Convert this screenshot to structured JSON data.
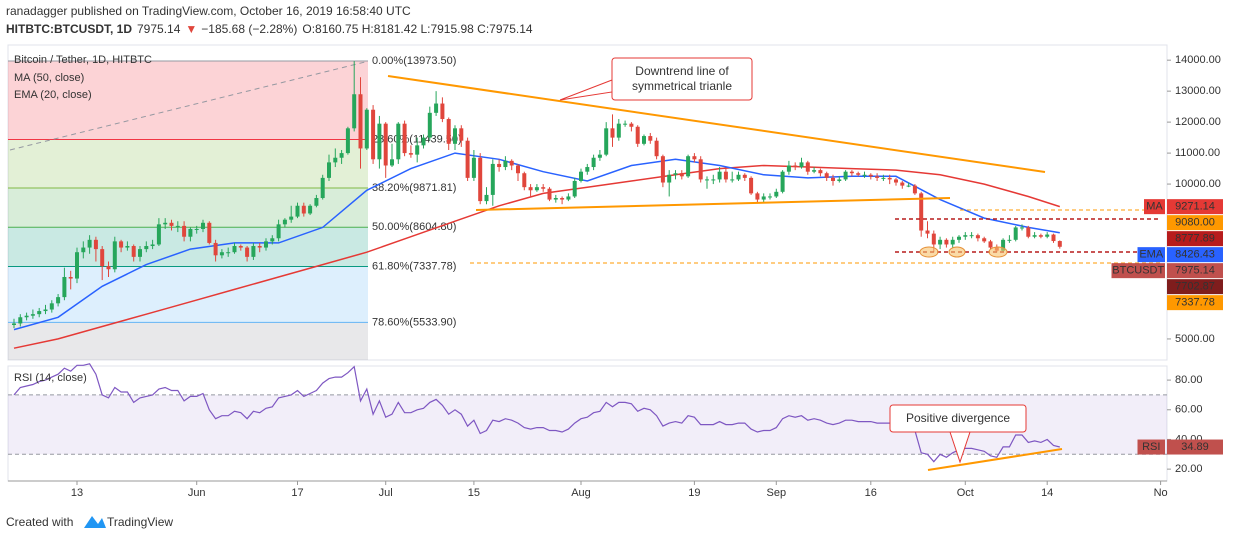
{
  "header": {
    "publisher": "ranadagger published on TradingView.com, October 16, 2019 16:58:40 UTC",
    "symbol": "HITBTC:BTCUSDT, 1D",
    "price": "7975.14",
    "arrow": "▼",
    "change": "−185.68 (−2.28%)",
    "ohlc": "O:8160.75 H:8181.42 L:7915.98 C:7975.14"
  },
  "footer": {
    "created": "Created with",
    "brand": "TradingView"
  },
  "chart_data": {
    "type": "candlestick",
    "title": "Bitcoin / Tether, 1D, HITBTC",
    "ylim": [
      4320,
      14490
    ],
    "yticks": [
      {
        "value": 5000,
        "label": "5000.00"
      },
      {
        "value": 10000,
        "label": "10000.00"
      },
      {
        "value": 11000,
        "label": "11000.00"
      },
      {
        "value": 12000,
        "label": "12000.00"
      },
      {
        "value": 13000,
        "label": "13000.00"
      },
      {
        "value": 14000,
        "label": "14000.00"
      }
    ],
    "xticks": [
      {
        "value": 10,
        "label": "13"
      },
      {
        "value": 29,
        "label": "Jun"
      },
      {
        "value": 45,
        "label": "17"
      },
      {
        "value": 59,
        "label": "Jul"
      },
      {
        "value": 73,
        "label": "15"
      },
      {
        "value": 90,
        "label": "Aug"
      },
      {
        "value": 108,
        "label": "19"
      },
      {
        "value": 121,
        "label": "Sep"
      },
      {
        "value": 136,
        "label": "16"
      },
      {
        "value": 151,
        "label": "Oct"
      },
      {
        "value": 164,
        "label": "14"
      },
      {
        "value": 182,
        "label": "No"
      }
    ],
    "candles": {
      "up_color": "#26a65b",
      "down_color": "#e0463c",
      "open": [
        5450,
        5500,
        5700,
        5750,
        5800,
        5900,
        5950,
        6150,
        6350,
        7000,
        6950,
        7800,
        7950,
        8200,
        7900,
        7350,
        7250,
        8150,
        7950,
        8000,
        7650,
        7900,
        8000,
        8050,
        8700,
        8750,
        8650,
        8650,
        8300,
        8550,
        8550,
        8750,
        8100,
        7700,
        7800,
        7800,
        8000,
        7950,
        7650,
        8000,
        7950,
        8150,
        8250,
        8700,
        8850,
        8950,
        9300,
        9050,
        9300,
        9550,
        10200,
        10700,
        10850,
        11000,
        11800,
        12900,
        11150,
        12400,
        10800,
        11950,
        10600,
        10800,
        11950,
        11000,
        10950,
        11250,
        11500,
        12300,
        12600,
        12100,
        11300,
        11800,
        11400,
        10200,
        10850,
        9450,
        9650,
        10650,
        10550,
        10750,
        10600,
        10350,
        9900,
        9800,
        9900,
        9850,
        9500,
        9550,
        9500,
        9600,
        10100,
        10400,
        10550,
        10850,
        10950,
        11800,
        11500,
        11950,
        11950,
        11850,
        11300,
        11550,
        11400,
        10900,
        10050,
        10300,
        10350,
        10250,
        10900,
        10800,
        10150,
        10150,
        10150,
        10400,
        10150,
        10150,
        10300,
        10200,
        9700,
        9500,
        9600,
        9600,
        9750,
        10400,
        10600,
        10550,
        10700,
        10400,
        10450,
        10350,
        10200,
        10100,
        10150,
        10400,
        10350,
        10300,
        10300,
        10250,
        10200,
        10200,
        10150,
        10050,
        9950,
        9950,
        9700,
        8500,
        8400,
        8050,
        8200,
        8050,
        8200,
        8300,
        8350,
        8350,
        8250,
        8150,
        7950,
        7850,
        8200,
        8200,
        8600,
        8600,
        8300,
        8350,
        8300,
        8370,
        8160.75
      ],
      "high": [
        5650,
        5800,
        5850,
        5950,
        6000,
        6100,
        6250,
        6450,
        7300,
        7200,
        7950,
        8150,
        8350,
        8300,
        8000,
        7500,
        8300,
        8200,
        8150,
        8050,
        8000,
        8150,
        8200,
        8900,
        8900,
        8850,
        8800,
        8800,
        8600,
        8650,
        8850,
        8800,
        8200,
        7900,
        7950,
        8100,
        8050,
        8000,
        8100,
        8100,
        8250,
        8350,
        8850,
        8900,
        9300,
        9400,
        9400,
        9350,
        9650,
        10300,
        10950,
        11150,
        11100,
        11850,
        13970,
        13450,
        12450,
        12550,
        12200,
        12000,
        11300,
        12000,
        12050,
        11250,
        11500,
        11600,
        12500,
        13000,
        12800,
        12150,
        11900,
        11900,
        11500,
        11100,
        11000,
        9900,
        10800,
        10800,
        10900,
        10800,
        10650,
        10400,
        10000,
        10000,
        10000,
        9900,
        9650,
        9600,
        9700,
        10200,
        10500,
        10650,
        10950,
        11100,
        12000,
        12250,
        12100,
        12050,
        12000,
        11900,
        11600,
        11650,
        11500,
        10950,
        10450,
        10450,
        10450,
        10950,
        11000,
        10900,
        10250,
        10300,
        10550,
        10500,
        10400,
        10400,
        10350,
        10250,
        9750,
        9700,
        9700,
        9850,
        10450,
        10750,
        10700,
        10850,
        10750,
        10550,
        10500,
        10400,
        10300,
        10250,
        10450,
        10450,
        10400,
        10400,
        10350,
        10350,
        10300,
        10300,
        10200,
        10100,
        10050,
        10000,
        9750,
        8800,
        8500,
        8300,
        8250,
        8300,
        8350,
        8450,
        8450,
        8400,
        8300,
        8200,
        8050,
        8250,
        8350,
        8650,
        8700,
        8650,
        8450,
        8400,
        8450,
        8400,
        8181.42
      ],
      "low": [
        5350,
        5400,
        5600,
        5650,
        5700,
        5800,
        5850,
        6050,
        6250,
        6600,
        6800,
        7600,
        7750,
        7500,
        6900,
        7000,
        7150,
        7800,
        7850,
        7500,
        7500,
        7800,
        7900,
        8000,
        8550,
        8500,
        8450,
        8150,
        8150,
        8400,
        8450,
        8050,
        7500,
        7600,
        7650,
        7750,
        7850,
        7500,
        7550,
        7800,
        7850,
        8050,
        8150,
        8600,
        8750,
        8900,
        8950,
        9000,
        9250,
        9500,
        10100,
        10550,
        10650,
        10950,
        11700,
        10500,
        11100,
        10650,
        10500,
        10200,
        10550,
        10650,
        10900,
        10850,
        10700,
        11150,
        11400,
        12200,
        12000,
        11100,
        11100,
        11200,
        10100,
        10100,
        9350,
        9350,
        9300,
        10400,
        10450,
        10450,
        10100,
        9800,
        9600,
        9750,
        9750,
        9450,
        9400,
        9350,
        9450,
        9550,
        10050,
        10300,
        10450,
        10750,
        10900,
        11200,
        11400,
        11850,
        11700,
        11200,
        11250,
        11300,
        10800,
        9900,
        9600,
        10150,
        10150,
        10200,
        10700,
        10050,
        9850,
        10000,
        10050,
        10050,
        10050,
        10100,
        10100,
        9650,
        9400,
        9400,
        9500,
        9550,
        9700,
        10300,
        10450,
        10500,
        10300,
        10350,
        10250,
        10100,
        9950,
        10050,
        10100,
        10250,
        10250,
        10200,
        10150,
        10100,
        10100,
        10000,
        9950,
        9850,
        9900,
        9650,
        8300,
        8250,
        7800,
        7900,
        7950,
        7950,
        8100,
        8200,
        8250,
        8150,
        8100,
        7900,
        7800,
        7800,
        8100,
        8150,
        8500,
        8250,
        8250,
        8250,
        8250,
        8100,
        7915.98
      ],
      "close": [
        5500,
        5700,
        5750,
        5800,
        5900,
        5950,
        6150,
        6350,
        7000,
        6950,
        7800,
        7950,
        8200,
        7900,
        7350,
        7250,
        8150,
        7950,
        8000,
        7650,
        7900,
        8000,
        8050,
        8700,
        8750,
        8650,
        8650,
        8300,
        8550,
        8550,
        8750,
        8100,
        7700,
        7800,
        7800,
        8000,
        7950,
        7650,
        8000,
        7950,
        8150,
        8250,
        8700,
        8850,
        8950,
        9300,
        9050,
        9300,
        9550,
        10200,
        10700,
        10850,
        11000,
        11800,
        12900,
        11150,
        12400,
        10800,
        11950,
        10600,
        10800,
        11950,
        11000,
        10950,
        11250,
        11500,
        12300,
        12600,
        12100,
        11300,
        11800,
        11400,
        10200,
        10850,
        9450,
        9650,
        10650,
        10550,
        10750,
        10600,
        10350,
        9900,
        9800,
        9900,
        9850,
        9500,
        9550,
        9500,
        9600,
        10100,
        10400,
        10550,
        10850,
        10950,
        11800,
        11500,
        11950,
        11950,
        11850,
        11300,
        11550,
        11400,
        10900,
        10050,
        10300,
        10350,
        10250,
        10900,
        10800,
        10150,
        10150,
        10150,
        10400,
        10150,
        10150,
        10300,
        10200,
        9700,
        9500,
        9600,
        9600,
        9750,
        10400,
        10600,
        10550,
        10700,
        10400,
        10450,
        10350,
        10200,
        10100,
        10150,
        10400,
        10350,
        10300,
        10300,
        10250,
        10200,
        10200,
        10150,
        10050,
        9950,
        9950,
        9700,
        8500,
        8400,
        8050,
        8200,
        8050,
        8200,
        8300,
        8350,
        8350,
        8250,
        8150,
        7950,
        7850,
        8200,
        8200,
        8600,
        8600,
        8300,
        8350,
        8300,
        8370,
        8160.82,
        7975.14
      ]
    },
    "series": [
      {
        "name": "MA (50, close)",
        "color": "#e53935",
        "x": [
          0,
          7,
          14,
          21,
          28,
          35,
          42,
          49,
          56,
          63,
          70,
          77,
          84,
          91,
          98,
          105,
          112,
          119,
          126,
          133,
          140,
          147,
          154,
          161,
          166
        ],
        "values": [
          4700,
          5000,
          5400,
          5800,
          6200,
          6600,
          7000,
          7400,
          7800,
          8300,
          8800,
          9300,
          9700,
          9900,
          10100,
          10300,
          10500,
          10600,
          10550,
          10500,
          10450,
          10300,
          10000,
          9600,
          9271.14
        ]
      },
      {
        "name": "EMA (20, close)",
        "color": "#2962ff",
        "x": [
          0,
          7,
          14,
          21,
          28,
          35,
          42,
          49,
          56,
          63,
          70,
          77,
          84,
          91,
          98,
          105,
          112,
          119,
          126,
          133,
          140,
          147,
          154,
          161,
          166
        ],
        "values": [
          5300,
          5700,
          6700,
          7400,
          7900,
          8100,
          8100,
          8600,
          9800,
          10500,
          11000,
          10800,
          10400,
          10100,
          10600,
          10800,
          10600,
          10300,
          10200,
          10250,
          10250,
          9500,
          8900,
          8600,
          8426.43
        ]
      }
    ],
    "fib": [
      {
        "label": "0.00%(13973.50)",
        "value": 13973.5,
        "color": "#9598a1"
      },
      {
        "label": "23.60%(11439.50)",
        "value": 11439.5,
        "color": "#f23645"
      },
      {
        "label": "38.20%(9871.81)",
        "value": 9871.81,
        "color": "#81b944"
      },
      {
        "label": "50.00%(8604.80)",
        "value": 8604.8,
        "color": "#4caf50"
      },
      {
        "label": "61.80%(7337.78)",
        "value": 7337.78,
        "color": "#089981"
      },
      {
        "label": "78.60%(5533.90)",
        "value": 5533.9,
        "color": "#64b5f6"
      }
    ],
    "price_tags": [
      {
        "tag": "MA",
        "label": "9271.14",
        "value": 9271.14,
        "color": "#e53935"
      },
      {
        "label": "9080.00",
        "value": 9080,
        "color": "#ff9800"
      },
      {
        "label": "8777.89",
        "value": 8777.89,
        "color": "#b71c1c"
      },
      {
        "tag": "EMA",
        "label": "8426.43",
        "value": 8426.43,
        "color": "#2962ff"
      },
      {
        "tag": "BTCUSDT",
        "label": "7975.14",
        "value": 7975.14,
        "color": "#c0504d"
      },
      {
        "label": "7702.87",
        "value": 7702.87,
        "color": "#7f1d1d"
      },
      {
        "label": "7337.78",
        "value": 7337.78,
        "color": "#ff9800"
      }
    ],
    "annotations": [
      "Downtrend line of",
      "symmetrical trianle",
      "Positive divergence"
    ],
    "rsi": {
      "name": "RSI (14, close)",
      "color": "#7e57c2",
      "ylim": [
        12,
        89.5
      ],
      "band": [
        30,
        70
      ],
      "yticks": [
        {
          "value": 20,
          "label": "20.00"
        },
        {
          "value": 40,
          "label": "40.00"
        },
        {
          "value": 60,
          "label": "60.00"
        },
        {
          "value": 80,
          "label": "80.00"
        }
      ],
      "tag": {
        "tag": "RSI",
        "label": "34.89",
        "value": 34.89,
        "color": "#c0504d"
      },
      "values": [
        70,
        75,
        76,
        77,
        79,
        80,
        82,
        84,
        88,
        86,
        90,
        90,
        91,
        84,
        70,
        68,
        75,
        72,
        72,
        65,
        68,
        69,
        70,
        74,
        75,
        73,
        73,
        66,
        69,
        69,
        71,
        60,
        54,
        56,
        56,
        59,
        58,
        54,
        59,
        58,
        61,
        62,
        68,
        69,
        70,
        73,
        69,
        71,
        73,
        78,
        81,
        82,
        82,
        85,
        89,
        66,
        74,
        57,
        66,
        55,
        57,
        65,
        58,
        58,
        60,
        61,
        65,
        67,
        63,
        57,
        60,
        57,
        49,
        53,
        44,
        46,
        53,
        52,
        54,
        53,
        51,
        48,
        47,
        48,
        48,
        46,
        46,
        45,
        47,
        51,
        54,
        55,
        58,
        59,
        65,
        62,
        65,
        65,
        64,
        59,
        61,
        60,
        56,
        49,
        51,
        52,
        51,
        56,
        55,
        50,
        50,
        50,
        52,
        50,
        50,
        51,
        51,
        47,
        45,
        46,
        46,
        48,
        54,
        56,
        55,
        56,
        53,
        54,
        53,
        51,
        50,
        51,
        53,
        53,
        52,
        52,
        52,
        51,
        51,
        51,
        50,
        49,
        49,
        46,
        31,
        30,
        25,
        30,
        28,
        31,
        33,
        34,
        34,
        33,
        32,
        29,
        28,
        35,
        35,
        43,
        43,
        38,
        39,
        38,
        40,
        36,
        34.89
      ]
    }
  }
}
